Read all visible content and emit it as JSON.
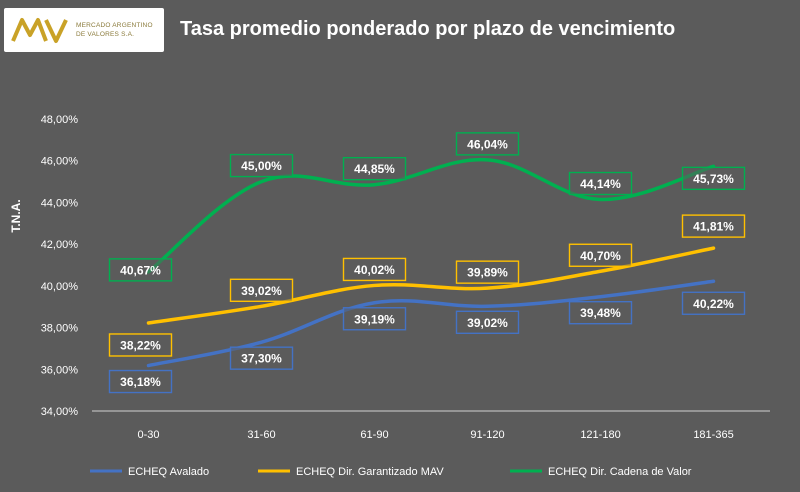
{
  "header": {
    "title": "Tasa promedio ponderado por plazo de vencimiento",
    "logo": {
      "line1": "MERCADO ARGENTINO",
      "line2": "DE VALORES S.A.",
      "icon": "mav-logo"
    }
  },
  "colors": {
    "background": "#5b5b5b",
    "series": [
      "#4472c4",
      "#ffc000",
      "#00b050"
    ]
  },
  "chart_data": {
    "type": "line",
    "smooth": true,
    "title": "Tasa promedio ponderado por plazo de vencimiento",
    "ylabel": "T.N.A.",
    "xlabel": "",
    "categories": [
      "0-30",
      "31-60",
      "61-90",
      "91-120",
      "121-180",
      "181-365"
    ],
    "ylim": [
      34,
      48
    ],
    "yticks": [
      "34,00%",
      "36,00%",
      "38,00%",
      "40,00%",
      "42,00%",
      "44,00%",
      "46,00%",
      "48,00%"
    ],
    "grid": false,
    "legend_position": "bottom",
    "series": [
      {
        "name": "ECHEQ Avalado",
        "values": [
          36.18,
          37.3,
          39.19,
          39.02,
          39.48,
          40.22
        ],
        "labels": [
          "36,18%",
          "37,30%",
          "39,19%",
          "39,02%",
          "39,48%",
          "40,22%"
        ]
      },
      {
        "name": "ECHEQ Dir. Garantizado MAV",
        "values": [
          38.22,
          39.02,
          40.02,
          39.89,
          40.7,
          41.81
        ],
        "labels": [
          "38,22%",
          "39,02%",
          "40,02%",
          "39,89%",
          "40,70%",
          "41,81%"
        ]
      },
      {
        "name": "ECHEQ Dir. Cadena de Valor",
        "values": [
          40.67,
          45.0,
          44.85,
          46.04,
          44.14,
          45.73
        ],
        "labels": [
          "40,67%",
          "45,00%",
          "44,85%",
          "46,04%",
          "44,14%",
          "45,73%"
        ]
      }
    ]
  }
}
